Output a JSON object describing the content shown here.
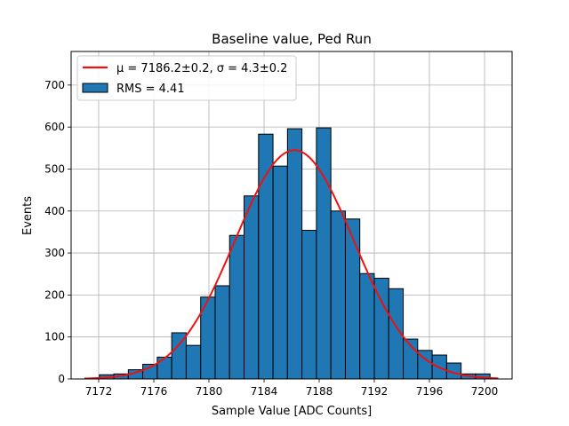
{
  "chart_data": {
    "type": "bar",
    "title": "Baseline value, Ped Run",
    "xlabel": "Sample Value [ADC Counts]",
    "ylabel": "Events",
    "xlim": [
      7170,
      7202
    ],
    "ylim": [
      0,
      780
    ],
    "xticks": [
      7172,
      7176,
      7180,
      7184,
      7188,
      7192,
      7196,
      7200
    ],
    "yticks": [
      0,
      100,
      200,
      300,
      400,
      500,
      600,
      700
    ],
    "grid": true,
    "legend_position": "top-left",
    "bin_width": 1.05,
    "bins": [
      {
        "x": 7171.0,
        "count": 2
      },
      {
        "x": 7172.05,
        "count": 10
      },
      {
        "x": 7173.1,
        "count": 12
      },
      {
        "x": 7174.15,
        "count": 22
      },
      {
        "x": 7175.2,
        "count": 35
      },
      {
        "x": 7176.25,
        "count": 52
      },
      {
        "x": 7177.3,
        "count": 110
      },
      {
        "x": 7178.35,
        "count": 80
      },
      {
        "x": 7179.4,
        "count": 195
      },
      {
        "x": 7180.45,
        "count": 222
      },
      {
        "x": 7181.5,
        "count": 342
      },
      {
        "x": 7182.55,
        "count": 436
      },
      {
        "x": 7183.6,
        "count": 583
      },
      {
        "x": 7184.65,
        "count": 507
      },
      {
        "x": 7185.7,
        "count": 596
      },
      {
        "x": 7186.75,
        "count": 354
      },
      {
        "x": 7187.8,
        "count": 598
      },
      {
        "x": 7188.85,
        "count": 400
      },
      {
        "x": 7189.9,
        "count": 381
      },
      {
        "x": 7190.95,
        "count": 251
      },
      {
        "x": 7192.0,
        "count": 240
      },
      {
        "x": 7193.05,
        "count": 215
      },
      {
        "x": 7194.1,
        "count": 95
      },
      {
        "x": 7195.15,
        "count": 68
      },
      {
        "x": 7196.2,
        "count": 57
      },
      {
        "x": 7197.25,
        "count": 38
      },
      {
        "x": 7198.3,
        "count": 12
      },
      {
        "x": 7199.35,
        "count": 12
      }
    ],
    "fit": {
      "type": "gaussian",
      "mu": 7186.2,
      "sigma": 4.3,
      "amplitude": 545,
      "x_range": [
        7171,
        7201
      ]
    },
    "series": [
      {
        "name": "μ = 7186.2±0.2, σ = 4.3±0.2",
        "kind": "line",
        "color": "#ee1111"
      },
      {
        "name": "RMS = 4.41",
        "kind": "histogram",
        "color": "#1f77b4"
      }
    ],
    "legend": {
      "fit_label": "μ = 7186.2±0.2, σ = 4.3±0.2",
      "hist_label": "RMS = 4.41"
    }
  },
  "colors": {
    "bar_fill": "#1f77b4",
    "bar_edge": "#000000",
    "fit_line": "#ee1111",
    "grid": "#b0b0b0"
  }
}
